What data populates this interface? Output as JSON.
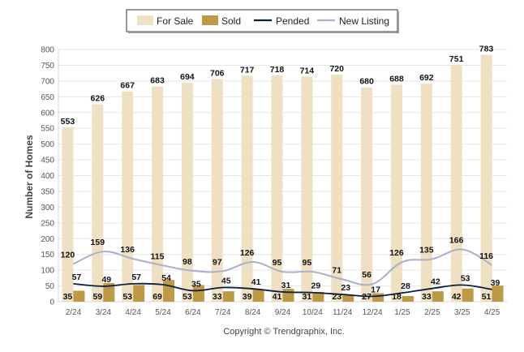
{
  "chart_data": {
    "type": "bar",
    "categories": [
      "2/24",
      "3/24",
      "4/24",
      "5/24",
      "6/24",
      "7/24",
      "8/24",
      "9/24",
      "10/24",
      "11/24",
      "12/24",
      "1/25",
      "2/25",
      "3/25",
      "4/25"
    ],
    "series": [
      {
        "name": "For Sale",
        "kind": "bar",
        "color": "#efe0c3",
        "values": [
          553,
          626,
          667,
          683,
          694,
          706,
          717,
          718,
          714,
          720,
          680,
          688,
          692,
          751,
          783
        ]
      },
      {
        "name": "Sold",
        "kind": "bar",
        "color": "#bf9a46",
        "values": [
          35,
          59,
          53,
          69,
          53,
          33,
          39,
          41,
          31,
          23,
          27,
          18,
          33,
          42,
          51
        ]
      },
      {
        "name": "Pended",
        "kind": "line",
        "color": "#0b1f3f",
        "values": [
          57,
          49,
          57,
          54,
          35,
          45,
          41,
          31,
          29,
          23,
          17,
          28,
          42,
          53,
          39
        ]
      },
      {
        "name": "New Listing",
        "kind": "line",
        "color": "#a9b0c8",
        "values": [
          120,
          159,
          136,
          115,
          98,
          97,
          126,
          95,
          95,
          71,
          56,
          126,
          135,
          166,
          116
        ]
      }
    ],
    "ylabel": "Number of Homes",
    "xlabel": "",
    "title": "",
    "ylim": [
      0,
      800
    ],
    "yticks": [
      0,
      50,
      100,
      150,
      200,
      250,
      300,
      350,
      400,
      450,
      500,
      550,
      600,
      650,
      700,
      750,
      800
    ],
    "grid": true,
    "legend_placement": "top-center",
    "footer": "Copyright © Trendgraphix, Inc."
  }
}
